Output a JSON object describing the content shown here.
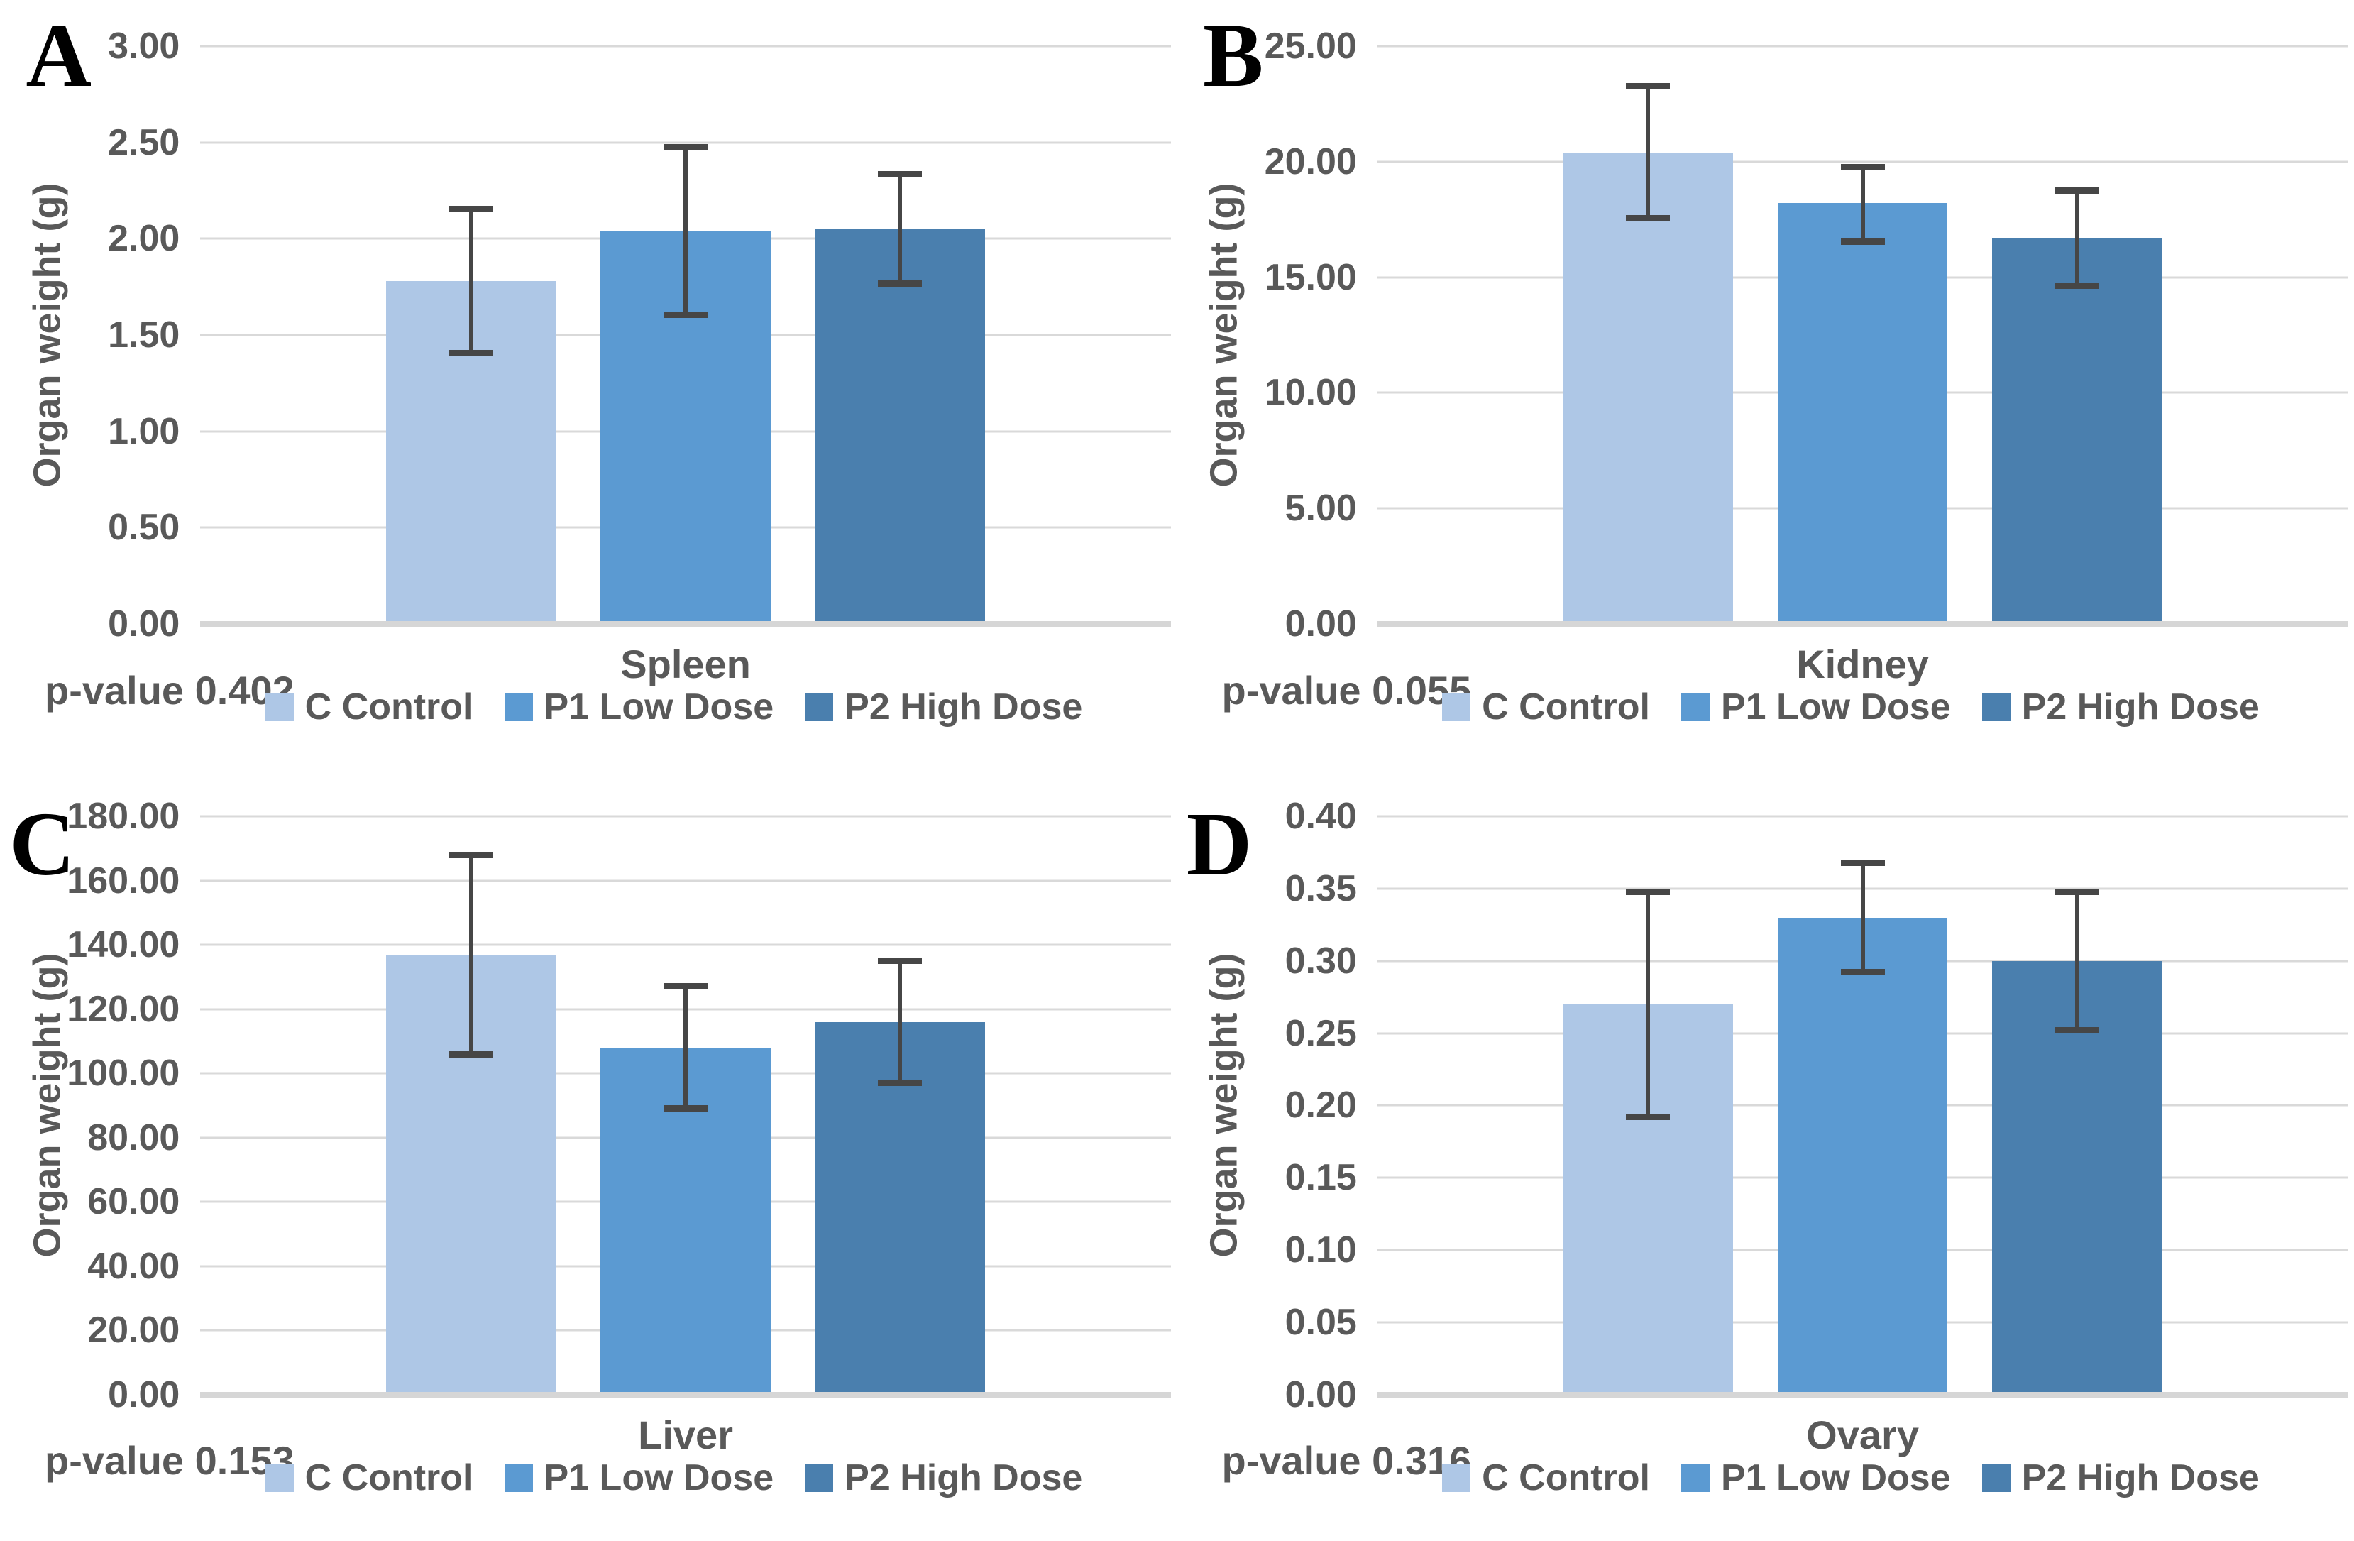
{
  "figure": {
    "background": "#ffffff",
    "text_color": "#595959",
    "gridline_color": "#d9d9d9",
    "errorbar_color": "#464646",
    "groups": [
      {
        "key": "control",
        "label": "C Control",
        "color": "#aec7e6"
      },
      {
        "key": "p1",
        "label": "P1 Low Dose",
        "color": "#5b9ad2"
      },
      {
        "key": "p2",
        "label": "P2 High Dose",
        "color": "#4a7fae"
      }
    ]
  },
  "chart_data": [
    {
      "panel_letter": "A",
      "type": "bar",
      "organ": "Spleen",
      "p_value": "p-value 0.402",
      "ylabel": "Organ weight (g)",
      "ylim": [
        0,
        3.0
      ],
      "ytick_step": 0.5,
      "grid": true,
      "legend_position": "bottom",
      "yticks": [
        "3.00",
        "2.50",
        "2.00",
        "1.50",
        "1.00",
        "0.50",
        "0.00"
      ],
      "series": [
        {
          "name": "C Control",
          "value": 1.78,
          "err_low": 1.39,
          "err_high": 2.17
        },
        {
          "name": "P1 Low Dose",
          "value": 2.04,
          "err_low": 1.59,
          "err_high": 2.49
        },
        {
          "name": "P2 High Dose",
          "value": 2.05,
          "err_low": 1.75,
          "err_high": 2.35
        }
      ]
    },
    {
      "panel_letter": "B",
      "type": "bar",
      "organ": "Kidney",
      "p_value": "p-value 0.055",
      "ylabel": "Organ weight (g)",
      "ylim": [
        0,
        25.0
      ],
      "ytick_step": 5.0,
      "grid": true,
      "legend_position": "bottom",
      "yticks": [
        "25.00",
        "20.00",
        "15.00",
        "10.00",
        "5.00",
        "0.00"
      ],
      "series": [
        {
          "name": "C Control",
          "value": 20.4,
          "err_low": 17.4,
          "err_high": 23.4
        },
        {
          "name": "P1 Low Dose",
          "value": 18.2,
          "err_low": 16.4,
          "err_high": 19.9
        },
        {
          "name": "P2 High Dose",
          "value": 16.7,
          "err_low": 14.5,
          "err_high": 18.9
        }
      ]
    },
    {
      "panel_letter": "C",
      "type": "bar",
      "organ": "Liver",
      "p_value": "p-value 0.153",
      "ylabel": "Organ weight (g)",
      "ylim": [
        0,
        180.0
      ],
      "ytick_step": 20.0,
      "grid": true,
      "legend_position": "bottom",
      "yticks": [
        "180.00",
        "160.00",
        "140.00",
        "120.00",
        "100.00",
        "80.00",
        "60.00",
        "40.00",
        "20.00",
        "0.00"
      ],
      "series": [
        {
          "name": "C Control",
          "value": 137,
          "err_low": 105,
          "err_high": 169
        },
        {
          "name": "P1 Low Dose",
          "value": 108,
          "err_low": 88,
          "err_high": 128
        },
        {
          "name": "P2 High Dose",
          "value": 116,
          "err_low": 96,
          "err_high": 136
        }
      ]
    },
    {
      "panel_letter": "D",
      "type": "bar",
      "organ": "Ovary",
      "p_value": "p-value 0.316",
      "ylabel": "Organ weight (g)",
      "ylim": [
        0,
        0.4
      ],
      "ytick_step": 0.05,
      "grid": true,
      "legend_position": "bottom",
      "yticks": [
        "0.40",
        "0.35",
        "0.30",
        "0.25",
        "0.20",
        "0.15",
        "0.10",
        "0.05",
        "0.00"
      ],
      "series": [
        {
          "name": "C Control",
          "value": 0.27,
          "err_low": 0.19,
          "err_high": 0.35
        },
        {
          "name": "P1 Low Dose",
          "value": 0.33,
          "err_low": 0.29,
          "err_high": 0.37
        },
        {
          "name": "P2 High Dose",
          "value": 0.3,
          "err_low": 0.25,
          "err_high": 0.35
        }
      ]
    }
  ]
}
